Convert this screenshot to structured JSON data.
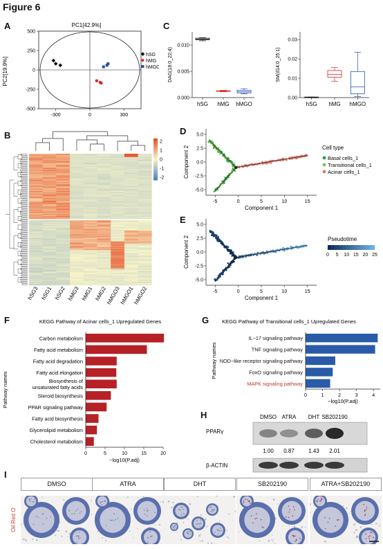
{
  "figure_title": "Figure 6",
  "panels": {
    "A": "A",
    "B": "B",
    "C": "C",
    "D": "D",
    "E": "E",
    "F": "F",
    "G": "G",
    "H": "H",
    "I": "I"
  },
  "colors": {
    "hSG": "#111111",
    "hMG": "#d62728",
    "hMGO": "#2a4fa8",
    "bar_red": "#b52127",
    "bar_blue": "#2a5ba8",
    "basal": "#2e9d4a",
    "transitional": "#7dc24f",
    "acinar": "#e0776a"
  },
  "chart_data": [
    {
      "id": "A",
      "type": "scatter",
      "title": "PC1[42.9%]",
      "ylabel": "PC2[19.9%]",
      "xticks": [
        "-300",
        "0",
        "300"
      ],
      "yticks": [
        "500",
        "250",
        "0",
        "-250",
        "-500"
      ],
      "series": [
        {
          "name": "hSG",
          "points": [
            [
              -320,
              120
            ],
            [
              -300,
              80
            ],
            [
              -260,
              60
            ]
          ]
        },
        {
          "name": "hMG",
          "points": [
            [
              60,
              -140
            ],
            [
              90,
              -160
            ],
            [
              100,
              -170
            ]
          ]
        },
        {
          "name": "hMGO",
          "points": [
            [
              120,
              40
            ],
            [
              150,
              60
            ],
            [
              160,
              80
            ]
          ]
        }
      ]
    },
    {
      "id": "C1",
      "type": "box",
      "ylabel": "DAG(18:0_22:4)",
      "yticks": [
        "0.000",
        "0.005",
        "0.010"
      ],
      "categories": [
        "hSG",
        "hMG",
        "hMGO"
      ],
      "boxes": [
        {
          "min": 0.0108,
          "q1": 0.011,
          "median": 0.0111,
          "q3": 0.0113,
          "max": 0.0114
        },
        {
          "min": 0.0011,
          "q1": 0.0012,
          "median": 0.0013,
          "q3": 0.0013,
          "max": 0.0014
        },
        {
          "min": 0.0007,
          "q1": 0.0009,
          "median": 0.0011,
          "q3": 0.0014,
          "max": 0.0017
        }
      ]
    },
    {
      "id": "C2",
      "type": "box",
      "ylabel": "SM(d14:0_25:1)",
      "yticks": [
        "0.00",
        "0.01",
        "0.02",
        "0.03"
      ],
      "categories": [
        "hSG",
        "hMG",
        "hMGO"
      ],
      "boxes": [
        {
          "min": 0.0001,
          "q1": 0.0002,
          "median": 0.0002,
          "q3": 0.0003,
          "max": 0.0003
        },
        {
          "min": 0.0085,
          "q1": 0.0105,
          "median": 0.012,
          "q3": 0.014,
          "max": 0.0155
        },
        {
          "min": 0.0005,
          "q1": 0.002,
          "median": 0.0055,
          "q3": 0.0135,
          "max": 0.0235
        }
      ]
    },
    {
      "id": "B",
      "type": "heatmap",
      "columns": [
        "hSG3",
        "hSG1",
        "hSG2",
        "hMG3",
        "hMG1",
        "hMG2",
        "hMGO3",
        "hMGO1",
        "hMGO2"
      ],
      "scale_ticks": [
        "2",
        "1",
        "0",
        "-1",
        "-2"
      ]
    },
    {
      "id": "D",
      "type": "scatter",
      "xlabel": "Component 1",
      "ylabel": "Component 2",
      "xticks": [
        "-5",
        "0",
        "5",
        "10",
        "15"
      ],
      "yticks": [
        "5.0",
        "2.5",
        "0.0",
        "-2.5",
        "-5.0"
      ],
      "legend_title": "Cell type",
      "legend": [
        "Basal cells_1",
        "Transitional cells_1",
        "Acinar cells_1"
      ]
    },
    {
      "id": "E",
      "type": "scatter",
      "xlabel": "Component 1",
      "ylabel": "Component 2",
      "xticks": [
        "-5",
        "0",
        "5",
        "10",
        "15"
      ],
      "yticks": [
        "5.0",
        "2.5",
        "0.0",
        "-2.5",
        "-5.0"
      ],
      "legend_title": "Pseudotime",
      "colorbar_ticks": [
        "0",
        "5",
        "10",
        "15",
        "20",
        "25"
      ]
    },
    {
      "id": "F",
      "type": "bar",
      "orientation": "horizontal",
      "title": "KEGG Pathway of Acinar cells_1 Upregulated Genes",
      "ylabel": "Pathway names",
      "xlabel": "−log10(P.adj)",
      "xticks": [
        "0",
        "5",
        "10",
        "15",
        "20"
      ],
      "xlim": [
        0,
        20
      ],
      "categories": [
        "Carbon metabolism",
        "Fatty acid metabolism",
        "Fatty acid degradation",
        "Fatty acid elongation",
        "Biosynthesis of\nunsaturated fatty acids",
        "Steroid biosynthesis",
        "PPAR signaling pathway",
        "Fatty acid biosynthesis",
        "Glycerolipid metabolism",
        "Cholesterol metabolism"
      ],
      "values": [
        20.2,
        15.8,
        8.0,
        7.9,
        8.0,
        6.5,
        5.4,
        3.3,
        2.9,
        2.1
      ]
    },
    {
      "id": "G",
      "type": "bar",
      "orientation": "horizontal",
      "title": "KEGG Pathway of Transitional cells_1 Upregulated Genes",
      "ylabel": "Pathway names",
      "xlabel": "−log10(P.adj)",
      "xticks": [
        "0",
        "1",
        "2",
        "3",
        "4"
      ],
      "xlim": [
        0,
        4.4
      ],
      "categories": [
        "IL−17 signaling pathway",
        "TNF signaling pathway",
        "NOD−like receptor signaling pathway",
        "FoxO signaling pathway",
        "MAPK signaling pathway"
      ],
      "values": [
        4.25,
        4.1,
        1.75,
        1.6,
        1.45
      ],
      "highlight": "MAPK signaling pathway"
    }
  ],
  "H": {
    "conditions": [
      "DMSO",
      "ATRA",
      "DHT",
      "SB202190"
    ],
    "protein": "PPARγ",
    "control": "β-ACTIN",
    "values": [
      "1.00",
      "0.87",
      "1.43",
      "2.01"
    ]
  },
  "I": {
    "side_label": "Oil Red O",
    "conditions": [
      "DMSO",
      "ATRA",
      "DHT",
      "SB202190",
      "ATRA+SB202190"
    ]
  }
}
